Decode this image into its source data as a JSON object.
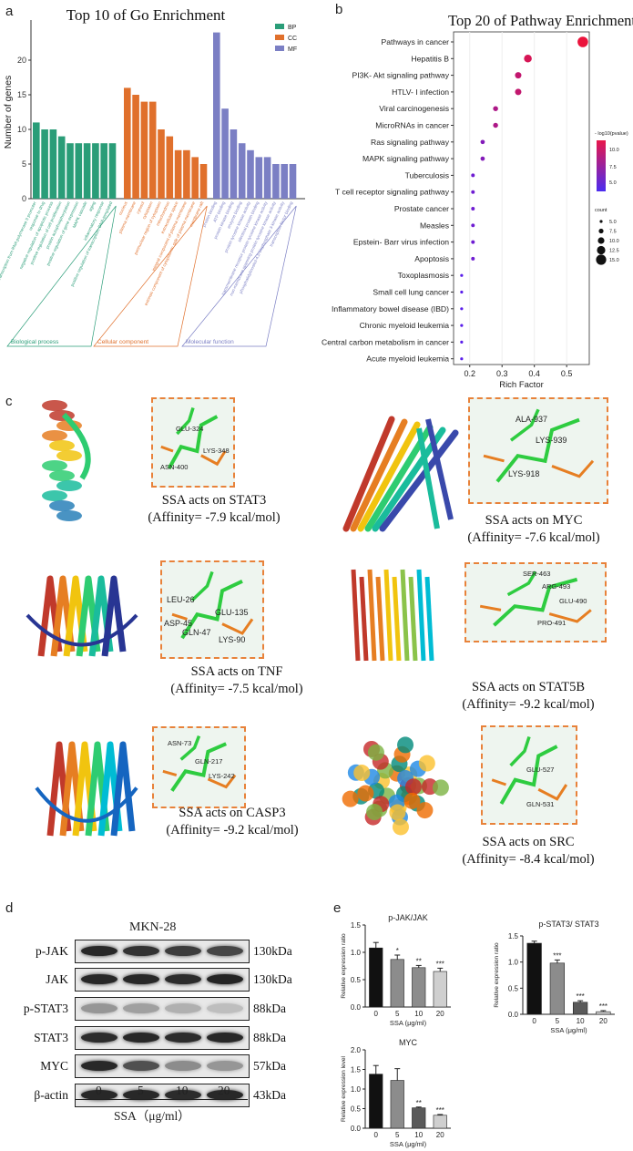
{
  "panels": {
    "a": "a",
    "b": "b",
    "c": "c",
    "d": "d",
    "e": "e"
  },
  "chart_data": [
    {
      "type": "bar",
      "title": "Top 10 of Go Enrichment",
      "ylabel": "Number of genes",
      "ylim": [
        0,
        25
      ],
      "yticks": [
        "0",
        "5",
        "10",
        "15",
        "20"
      ],
      "legend": [
        "BP",
        "CC",
        "MF"
      ],
      "colors": {
        "BP": "#2a9d78",
        "CC": "#e0702c",
        "MF": "#7b7fc4"
      },
      "groups": [
        "Biological process",
        "Cellular component",
        "Molecular function"
      ],
      "series": [
        {
          "name": "BP",
          "categories": [
            "positive regulation of transcription from RNA polymerase II promoter",
            "response to drug",
            "negative regulation of apoptotic process",
            "positive regulation of cell proliferation",
            "protein autophosphorylation",
            "positive regulation of gene expression",
            "MAPK cascade",
            "aging",
            "inflammatory response",
            "positive regulation of transcription, DNA-templated"
          ],
          "values": [
            11,
            10,
            10,
            9,
            8,
            8,
            8,
            8,
            8,
            8
          ]
        },
        {
          "name": "CC",
          "categories": [
            "nucleus",
            "plasma membrane",
            "cytosol",
            "cytoplasm",
            "perinuclear region of cytoplasm",
            "mitochondrion",
            "extracellular space",
            "integral component of plasma membrane",
            "extrinsic component of cytoplasmic side of plasma membrane",
            "membrane raft"
          ],
          "values": [
            16,
            15,
            14,
            14,
            10,
            9,
            7,
            7,
            6,
            5
          ]
        },
        {
          "name": "MF",
          "categories": [
            "protein binding",
            "ATP binding",
            "protein kinase binding",
            "enzyme binding",
            "protein tyrosine kinase activity",
            "identical protein binding",
            "transmembrane receptor protein tyrosine kinase activity",
            "non-membrane spanning protein tyrosine kinase activity",
            "phosphatidylinositol-4,5-bisphosphate 3-kinase activity",
            "transcription factor binding"
          ],
          "values": [
            24,
            13,
            10,
            8,
            7,
            6,
            6,
            5,
            5,
            5
          ]
        }
      ]
    },
    {
      "type": "scatter",
      "title": "Top 20 of Pathway Enrichment",
      "xlabel": "Rich Factor",
      "xlim": [
        0.15,
        0.57
      ],
      "xticks": [
        "0.2",
        "0.3",
        "0.4",
        "0.5"
      ],
      "legend_color_title": "- log10(pvalue)",
      "legend_color_ticks": [
        "10.0",
        "7.5",
        "5.0"
      ],
      "legend_size_title": "count",
      "legend_size_ticks": [
        "5.0",
        "7.5",
        "10.0",
        "12.5",
        "15.0"
      ],
      "categories": [
        "Pathways in cancer",
        "Hepatitis B",
        "PI3K- Akt signaling pathway",
        "HTLV- I infection",
        "Viral carcinogenesis",
        "MicroRNAs in cancer",
        "Ras signaling pathway",
        "MAPK signaling pathway",
        "Tuberculosis",
        "T cell receptor signaling pathway",
        "Prostate cancer",
        "Measles",
        "Epstein- Barr virus infection",
        "Apoptosis",
        "Toxoplasmosis",
        "Small cell lung cancer",
        "Inflammatory bowel disease (IBD)",
        "Chronic myeloid leukemia",
        "Central carbon metabolism in cancer",
        "Acute myeloid leukemia"
      ],
      "x": [
        0.55,
        0.38,
        0.35,
        0.35,
        0.28,
        0.28,
        0.24,
        0.24,
        0.21,
        0.21,
        0.21,
        0.21,
        0.21,
        0.21,
        0.175,
        0.175,
        0.175,
        0.175,
        0.175,
        0.175
      ],
      "count": [
        16,
        12,
        10,
        10,
        8,
        8,
        7,
        7,
        6,
        6,
        6,
        6,
        6,
        6,
        5,
        5,
        5,
        5,
        5,
        5
      ],
      "neglog10p": [
        11,
        10,
        9,
        9,
        8,
        8,
        6,
        6,
        5,
        5,
        5,
        5,
        5,
        5,
        4,
        4,
        4,
        4,
        4,
        4
      ]
    },
    {
      "type": "bar",
      "title": "p-JAK/JAK",
      "xlabel": "SSA (μg/ml)",
      "ylabel": "Relative expression ratio",
      "categories": [
        "0",
        "5",
        "10",
        "20"
      ],
      "values": [
        1.08,
        0.87,
        0.72,
        0.65
      ],
      "errors": [
        0.1,
        0.08,
        0.04,
        0.06
      ],
      "significance": [
        "",
        "*",
        "**",
        "***"
      ],
      "ylim": [
        0,
        1.5
      ],
      "yticks": [
        "0.0",
        "0.5",
        "1.0",
        "1.5"
      ],
      "colors": [
        "#111111",
        "#8c8c8c",
        "#8c8c8c",
        "#cfcfcf"
      ]
    },
    {
      "type": "bar",
      "title": "p-STAT3/ STAT3",
      "xlabel": "SSA (μg/ml)",
      "ylabel": "Relative expression ratio",
      "categories": [
        "0",
        "5",
        "10",
        "20"
      ],
      "values": [
        1.36,
        0.98,
        0.23,
        0.05
      ],
      "errors": [
        0.04,
        0.06,
        0.03,
        0.02
      ],
      "significance": [
        "",
        "***",
        "***",
        "***"
      ],
      "ylim": [
        0,
        1.5
      ],
      "yticks": [
        "0.0",
        "0.5",
        "1.0",
        "1.5"
      ],
      "colors": [
        "#111111",
        "#8c8c8c",
        "#5a5a5a",
        "#cfcfcf"
      ]
    },
    {
      "type": "bar",
      "title": "MYC",
      "xlabel": "SSA (μg/ml)",
      "ylabel": "Relative expression level",
      "categories": [
        "0",
        "5",
        "10",
        "20"
      ],
      "values": [
        1.38,
        1.22,
        0.52,
        0.33
      ],
      "errors": [
        0.22,
        0.3,
        0.02,
        0.02
      ],
      "significance": [
        "",
        "",
        "**",
        "***"
      ],
      "ylim": [
        0,
        2.0
      ],
      "yticks": [
        "0.0",
        "0.5",
        "1.0",
        "1.5",
        "2.0"
      ],
      "colors": [
        "#111111",
        "#8c8c8c",
        "#5a5a5a",
        "#cfcfcf"
      ]
    }
  ],
  "docking": [
    {
      "caption_1": "SSA acts on STAT3",
      "caption_2": "(Affinity= -7.9 kcal/mol)",
      "residues": [
        "GLU-324",
        "LYS-348",
        "ASN-400"
      ]
    },
    {
      "caption_1": "SSA acts on MYC",
      "caption_2": "(Affinity= -7.6 kcal/mol)",
      "residues": [
        "ALA-937",
        "LYS-939",
        "LYS-918"
      ]
    },
    {
      "caption_1": "SSA acts on TNF",
      "caption_2": "(Affinity= -7.5 kcal/mol)",
      "residues": [
        "LEU-26",
        "GLU-135",
        "ASP-45",
        "GLN-47",
        "LYS-90"
      ]
    },
    {
      "caption_1": "SSA acts on STAT5B",
      "caption_2": "(Affinity= -9.2 kcal/mol)",
      "residues": [
        "SER-463",
        "ARG-493",
        "GLU-490",
        "PRO-491"
      ]
    },
    {
      "caption_1": "SSA acts on CASP3",
      "caption_2": "(Affinity= -9.2 kcal/mol)",
      "residues": [
        "ASN-73",
        "GLN-217",
        "LYS-242"
      ]
    },
    {
      "caption_1": "SSA acts on SRC",
      "caption_2": "(Affinity= -8.4 kcal/mol)",
      "residues": [
        "GLU-527",
        "GLN-531"
      ]
    }
  ],
  "western_blot": {
    "cell_line": "MKN-28",
    "rows": [
      {
        "label": "p-JAK",
        "kda": "130kDa",
        "intensity": [
          0.9,
          0.85,
          0.8,
          0.75
        ]
      },
      {
        "label": "JAK",
        "kda": "130kDa",
        "intensity": [
          0.9,
          0.9,
          0.88,
          0.92
        ]
      },
      {
        "label": "p-STAT3",
        "kda": "88kDa",
        "intensity": [
          0.35,
          0.3,
          0.22,
          0.15
        ]
      },
      {
        "label": "STAT3",
        "kda": "88kDa",
        "intensity": [
          0.88,
          0.9,
          0.88,
          0.9
        ]
      },
      {
        "label": "MYC",
        "kda": "57kDa",
        "intensity": [
          0.9,
          0.7,
          0.4,
          0.35
        ]
      },
      {
        "label": "β-actin",
        "kda": "43kDa",
        "intensity": [
          0.9,
          0.9,
          0.88,
          0.9
        ]
      }
    ],
    "lanes": [
      "0",
      "5",
      "10",
      "20"
    ],
    "xlabel": "SSA（μg/ml）"
  }
}
